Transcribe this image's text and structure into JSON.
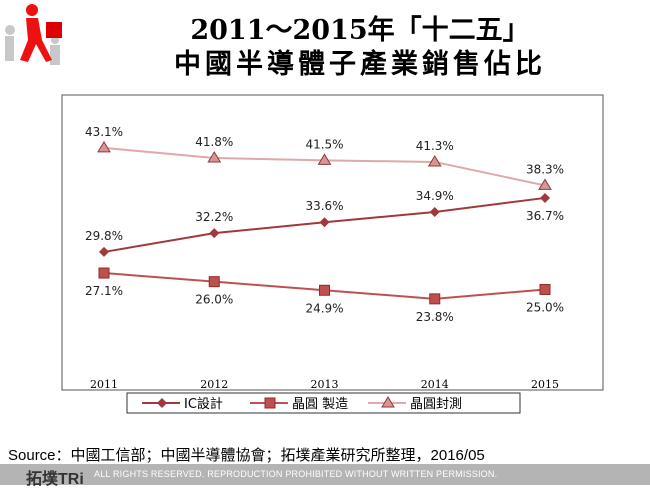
{
  "title": {
    "line1": "2011～2015年「十二五」",
    "line2": "中國半導體子產業銷售佔比"
  },
  "chart_data": {
    "type": "line",
    "categories": [
      "2011",
      "2012",
      "2013",
      "2014",
      "2015"
    ],
    "ylim": [
      20,
      45
    ],
    "grid": false,
    "legend": "bottom",
    "series": [
      {
        "name": "IC設計",
        "values": [
          29.8,
          32.2,
          33.6,
          34.9,
          36.7
        ],
        "labels": [
          "29.8%",
          "32.2%",
          "33.6%",
          "34.9%",
          "36.7%"
        ],
        "marker": "diamond",
        "color": "#A0393B"
      },
      {
        "name": "晶圓 製造",
        "values": [
          27.1,
          26.0,
          24.9,
          23.8,
          25.0
        ],
        "labels": [
          "27.1%",
          "26.0%",
          "24.9%",
          "23.8%",
          "25.0%"
        ],
        "marker": "square",
        "color": "#C0504D"
      },
      {
        "name": "晶圓封測",
        "values": [
          43.1,
          41.8,
          41.5,
          41.3,
          38.3
        ],
        "labels": [
          "43.1%",
          "41.8%",
          "41.5%",
          "41.3%",
          "38.3%"
        ],
        "marker": "triangle",
        "color": "#E0A8A8"
      }
    ]
  },
  "source": "Source：中國工信部；中國半導體協會；拓墣產業研究所整理，2016/05",
  "footer": {
    "logo": "拓墣TRi",
    "notice": "ALL RIGHTS RESERVED. REPRODUCTION PROHIBITED WITHOUT WRITTEN PERMISSION."
  }
}
